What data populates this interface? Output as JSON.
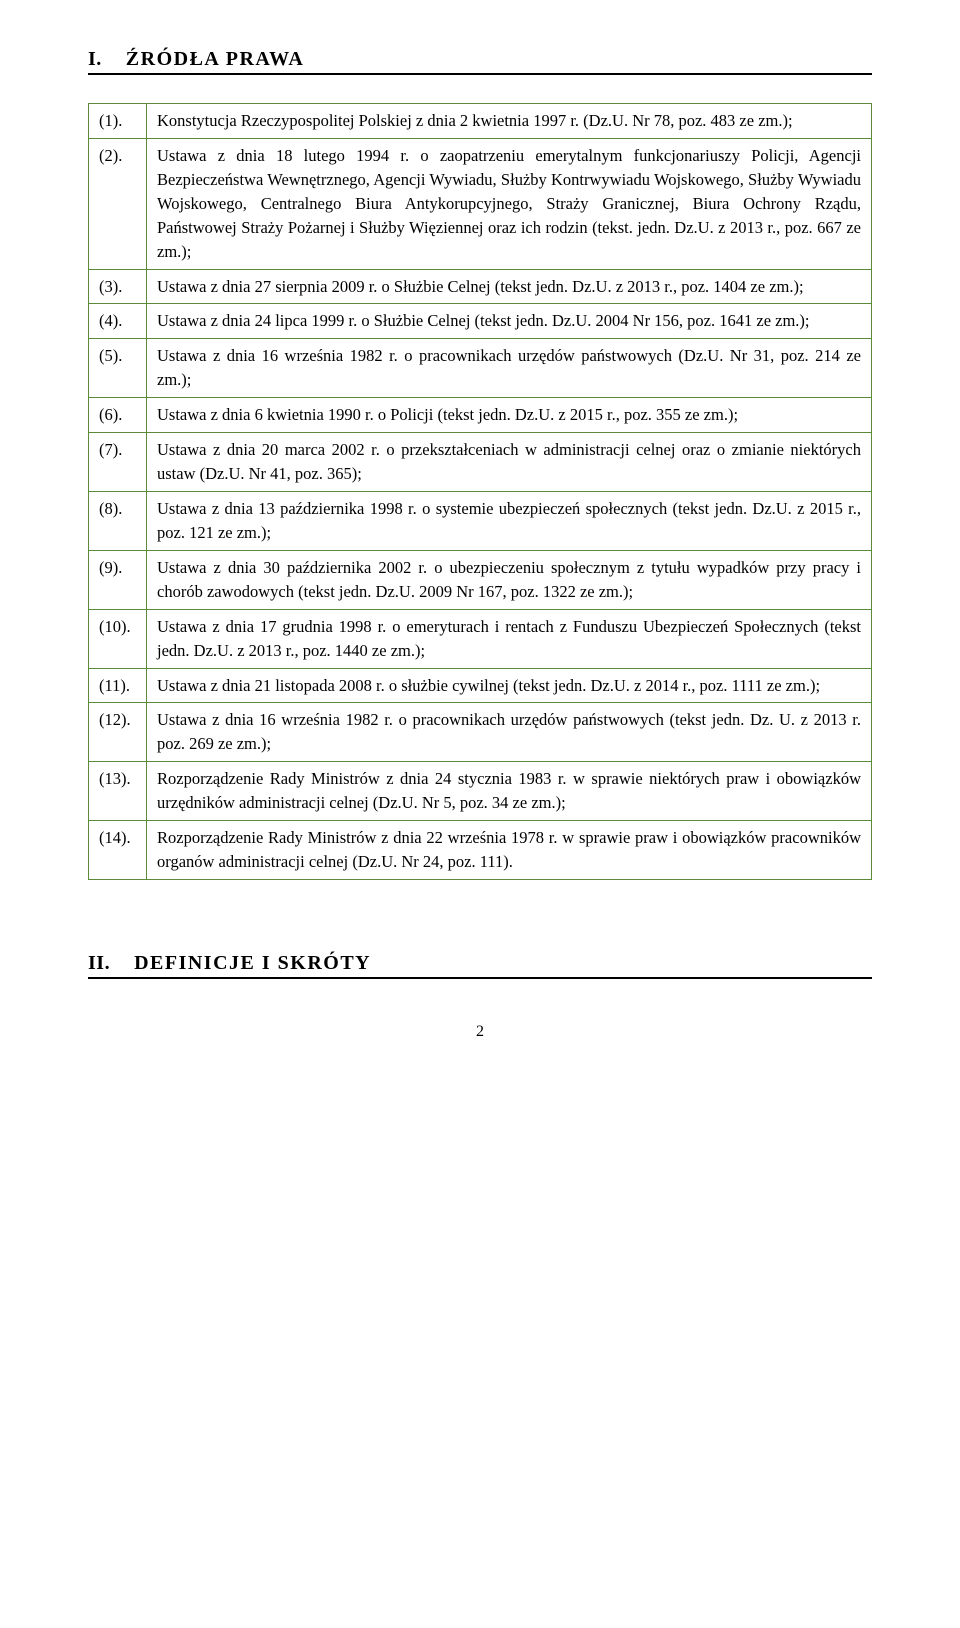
{
  "section1": {
    "number": "I.",
    "title": "ŹRÓDŁA PRAWA"
  },
  "section2": {
    "number": "II.",
    "title": "DEFINICJE I SKRÓTY"
  },
  "items": [
    {
      "num": "(1).",
      "text": "Konstytucja Rzeczypospolitej Polskiej z dnia 2 kwietnia 1997 r. (Dz.U. Nr 78, poz. 483 ze zm.);"
    },
    {
      "num": "(2).",
      "text": "Ustawa z dnia 18 lutego 1994 r. o zaopatrzeniu emerytalnym funkcjonariuszy Policji, Agencji Bezpieczeństwa Wewnętrznego, Agencji Wywiadu, Służby Kontrwywiadu Wojskowego, Służby Wywiadu Wojskowego, Centralnego Biura Antykorupcyjnego, Straży Granicznej, Biura Ochrony Rządu, Państwowej Straży Pożarnej i Służby Więziennej oraz ich rodzin (tekst. jedn. Dz.U. z 2013 r., poz. 667 ze zm.);"
    },
    {
      "num": "(3).",
      "text": "Ustawa z dnia 27 sierpnia 2009 r. o Służbie Celnej (tekst jedn. Dz.U. z 2013 r., poz. 1404 ze zm.);"
    },
    {
      "num": "(4).",
      "text": "Ustawa z dnia 24 lipca 1999 r. o Służbie Celnej (tekst jedn. Dz.U. 2004 Nr 156, poz. 1641 ze zm.);"
    },
    {
      "num": "(5).",
      "text": "Ustawa z dnia 16 września 1982 r. o pracownikach urzędów państwowych (Dz.U. Nr 31, poz. 214 ze zm.);"
    },
    {
      "num": "(6).",
      "text": "Ustawa z dnia 6 kwietnia 1990 r. o Policji (tekst jedn. Dz.U. z 2015 r., poz. 355 ze zm.);"
    },
    {
      "num": "(7).",
      "text": "Ustawa z dnia 20 marca 2002 r. o przekształceniach w administracji celnej oraz o zmianie niektórych ustaw (Dz.U. Nr 41, poz. 365);"
    },
    {
      "num": "(8).",
      "text": "Ustawa z dnia 13 października 1998 r. o systemie ubezpieczeń społecznych (tekst jedn. Dz.U. z 2015 r., poz. 121 ze zm.);"
    },
    {
      "num": "(9).",
      "text": "Ustawa z dnia 30 października 2002 r. o ubezpieczeniu społecznym z tytułu wypadków przy pracy i chorób zawodowych (tekst jedn. Dz.U. 2009 Nr 167, poz. 1322 ze zm.);"
    },
    {
      "num": "(10).",
      "text": "Ustawa z dnia 17 grudnia 1998 r. o emeryturach i rentach z Funduszu Ubezpieczeń Społecznych (tekst jedn. Dz.U. z 2013 r., poz. 1440 ze zm.);"
    },
    {
      "num": "(11).",
      "text": "Ustawa z dnia 21 listopada 2008 r. o służbie cywilnej (tekst jedn. Dz.U. z 2014 r., poz. 1111 ze zm.);"
    },
    {
      "num": "(12).",
      "text": "Ustawa z dnia 16 września 1982 r. o pracownikach urzędów państwowych (tekst jedn. Dz. U. z 2013 r. poz. 269 ze zm.);"
    },
    {
      "num": "(13).",
      "text": "Rozporządzenie Rady Ministrów z dnia 24 stycznia 1983 r. w sprawie niektórych praw i obowiązków urzędników administracji celnej (Dz.U. Nr 5, poz. 34 ze zm.);"
    },
    {
      "num": "(14).",
      "text": "Rozporządzenie Rady Ministrów z dnia 22 września 1978 r. w sprawie praw i obowiązków pracowników organów administracji celnej (Dz.U. Nr 24, poz. 111)."
    }
  ],
  "page_number": "2",
  "colors": {
    "table_border": "#5a8a3a",
    "text": "#000000",
    "background": "#ffffff"
  }
}
